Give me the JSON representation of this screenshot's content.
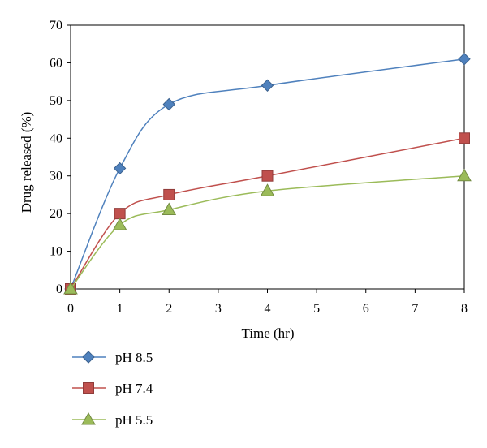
{
  "chart_data": {
    "type": "line",
    "title": "",
    "xlabel": "Time (hr)",
    "ylabel": "Drug released (%)",
    "xlim": [
      0,
      8
    ],
    "ylim": [
      0,
      70
    ],
    "xticks": [
      0,
      1,
      2,
      3,
      4,
      5,
      6,
      7,
      8
    ],
    "yticks": [
      0,
      10,
      20,
      30,
      40,
      50,
      60,
      70
    ],
    "grid": false,
    "legend_placement": "bottom-left",
    "series": [
      {
        "name": "pH 8.5",
        "marker": "diamond",
        "color": "#4F81BD",
        "x": [
          0,
          1,
          2,
          4,
          8
        ],
        "y": [
          0,
          32,
          49,
          54,
          61
        ]
      },
      {
        "name": "pH 7.4",
        "marker": "square",
        "color": "#C0504D",
        "x": [
          0,
          1,
          2,
          4,
          8
        ],
        "y": [
          0,
          20,
          25,
          30,
          40
        ]
      },
      {
        "name": "pH 5.5",
        "marker": "triangle",
        "color": "#9BBB59",
        "x": [
          0,
          1,
          2,
          4,
          8
        ],
        "y": [
          0,
          17,
          21,
          26,
          30
        ]
      }
    ]
  }
}
